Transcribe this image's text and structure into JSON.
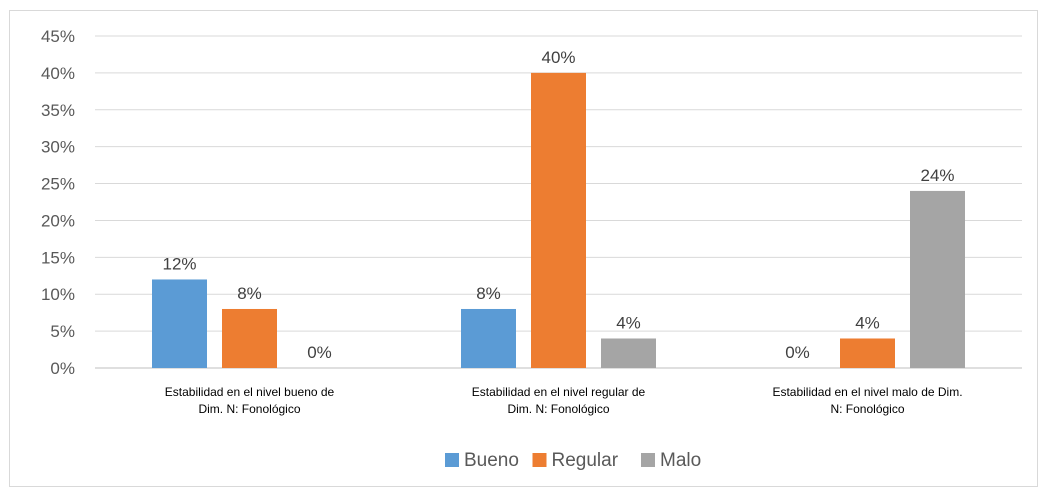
{
  "chart_data": {
    "type": "bar",
    "title": "",
    "xlabel": "",
    "ylabel": "",
    "ylim": [
      0,
      45
    ],
    "yticks": [
      0,
      5,
      10,
      15,
      20,
      25,
      30,
      35,
      40,
      45
    ],
    "y_format": "percent",
    "grid": true,
    "legend_position": "bottom",
    "categories": [
      [
        "Estabilidad en el nivel bueno de",
        "Dim. N: Fonológico"
      ],
      [
        "Estabilidad en el nivel regular de",
        "Dim. N: Fonológico"
      ],
      [
        "Estabilidad en el nivel malo de Dim.",
        "N: Fonológico"
      ]
    ],
    "series": [
      {
        "name": "Bueno",
        "color": "#5B9BD5",
        "values": [
          12,
          8,
          0
        ]
      },
      {
        "name": "Regular",
        "color": "#ED7D31",
        "values": [
          8,
          40,
          4
        ]
      },
      {
        "name": "Malo",
        "color": "#A5A5A5",
        "values": [
          0,
          4,
          24
        ]
      }
    ]
  }
}
